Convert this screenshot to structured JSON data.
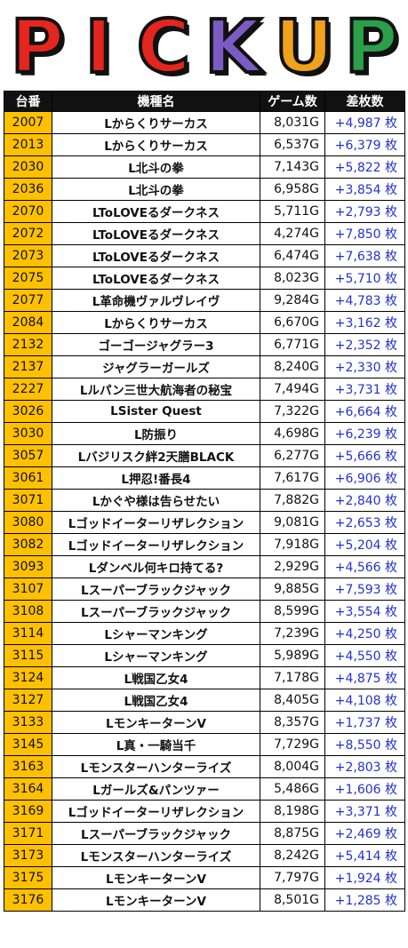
{
  "banner": {
    "letters": [
      {
        "char": "P",
        "color": "#e5261f"
      },
      {
        "char": "I",
        "color": "#e5261f"
      },
      {
        "char": "C",
        "color": "#e5261f"
      },
      {
        "char": "K",
        "color": "#7c5cc4"
      },
      {
        "char": "U",
        "color": "#f0a21c"
      },
      {
        "char": "P",
        "color": "#2aa04a"
      }
    ],
    "dirt_color": "#8b5a2b"
  },
  "table": {
    "headers": [
      "台番",
      "機種名",
      "ゲーム数",
      "差枚数"
    ],
    "rows": [
      {
        "num": "2007",
        "name": "Lからくりサーカス",
        "games": "8,031G",
        "diff": "+4,987 枚"
      },
      {
        "num": "2013",
        "name": "Lからくりサーカス",
        "games": "6,537G",
        "diff": "+6,379 枚"
      },
      {
        "num": "2030",
        "name": "L北斗の拳",
        "games": "7,143G",
        "diff": "+5,822 枚"
      },
      {
        "num": "2036",
        "name": "L北斗の拳",
        "games": "6,958G",
        "diff": "+3,854 枚"
      },
      {
        "num": "2070",
        "name": "LToLOVEるダークネス",
        "games": "5,711G",
        "diff": "+2,793 枚"
      },
      {
        "num": "2072",
        "name": "LToLOVEるダークネス",
        "games": "4,274G",
        "diff": "+7,850 枚"
      },
      {
        "num": "2073",
        "name": "LToLOVEるダークネス",
        "games": "6,474G",
        "diff": "+7,638 枚"
      },
      {
        "num": "2075",
        "name": "LToLOVEるダークネス",
        "games": "8,023G",
        "diff": "+5,710 枚"
      },
      {
        "num": "2077",
        "name": "L革命機ヴァルヴレイヴ",
        "games": "9,284G",
        "diff": "+4,783 枚"
      },
      {
        "num": "2084",
        "name": "Lからくりサーカス",
        "games": "6,670G",
        "diff": "+3,162 枚"
      },
      {
        "num": "2132",
        "name": "ゴーゴージャグラー3",
        "games": "6,771G",
        "diff": "+2,352 枚"
      },
      {
        "num": "2137",
        "name": "ジャグラーガールズ",
        "games": "8,240G",
        "diff": "+2,330 枚"
      },
      {
        "num": "2227",
        "name": "Lルパン三世大航海者の秘宝",
        "games": "7,494G",
        "diff": "+3,731 枚"
      },
      {
        "num": "3026",
        "name": "LSister Quest",
        "games": "7,322G",
        "diff": "+6,664 枚"
      },
      {
        "num": "3030",
        "name": "L防振り",
        "games": "4,698G",
        "diff": "+6,239 枚"
      },
      {
        "num": "3057",
        "name": "Lバジリスク絆2天膳BLACK",
        "games": "6,277G",
        "diff": "+5,666 枚"
      },
      {
        "num": "3061",
        "name": "L押忍!番長4",
        "games": "7,617G",
        "diff": "+6,906 枚"
      },
      {
        "num": "3071",
        "name": "Lかぐや様は告らせたい",
        "games": "7,882G",
        "diff": "+2,840 枚"
      },
      {
        "num": "3080",
        "name": "Lゴッドイーターリザレクション",
        "games": "9,081G",
        "diff": "+2,653 枚"
      },
      {
        "num": "3082",
        "name": "Lゴッドイーターリザレクション",
        "games": "7,918G",
        "diff": "+5,204 枚"
      },
      {
        "num": "3093",
        "name": "Lダンベル何キロ持てる?",
        "games": "2,929G",
        "diff": "+4,566 枚"
      },
      {
        "num": "3107",
        "name": "Lスーパーブラックジャック",
        "games": "9,885G",
        "diff": "+7,593 枚"
      },
      {
        "num": "3108",
        "name": "Lスーパーブラックジャック",
        "games": "8,599G",
        "diff": "+3,554 枚"
      },
      {
        "num": "3114",
        "name": "Lシャーマンキング",
        "games": "7,239G",
        "diff": "+4,250 枚"
      },
      {
        "num": "3115",
        "name": "Lシャーマンキング",
        "games": "5,989G",
        "diff": "+4,550 枚"
      },
      {
        "num": "3124",
        "name": "L戦国乙女4",
        "games": "7,178G",
        "diff": "+4,875 枚"
      },
      {
        "num": "3127",
        "name": "L戦国乙女4",
        "games": "8,405G",
        "diff": "+4,108 枚"
      },
      {
        "num": "3133",
        "name": "LモンキーターンV",
        "games": "8,357G",
        "diff": "+1,737 枚"
      },
      {
        "num": "3145",
        "name": "L真・一騎当千",
        "games": "7,729G",
        "diff": "+8,550 枚"
      },
      {
        "num": "3163",
        "name": "Lモンスターハンターライズ",
        "games": "8,004G",
        "diff": "+2,803 枚"
      },
      {
        "num": "3164",
        "name": "Lガールズ&パンツァー",
        "games": "5,486G",
        "diff": "+1,606 枚"
      },
      {
        "num": "3169",
        "name": "Lゴッドイーターリザレクション",
        "games": "8,198G",
        "diff": "+3,371 枚"
      },
      {
        "num": "3171",
        "name": "Lスーパーブラックジャック",
        "games": "8,875G",
        "diff": "+2,469 枚"
      },
      {
        "num": "3173",
        "name": "Lモンスターハンターライズ",
        "games": "8,242G",
        "diff": "+5,414 枚"
      },
      {
        "num": "3175",
        "name": "LモンキーターンV",
        "games": "7,797G",
        "diff": "+1,924 枚"
      },
      {
        "num": "3176",
        "name": "LモンキーターンV",
        "games": "8,501G",
        "diff": "+1,285 枚"
      }
    ]
  }
}
